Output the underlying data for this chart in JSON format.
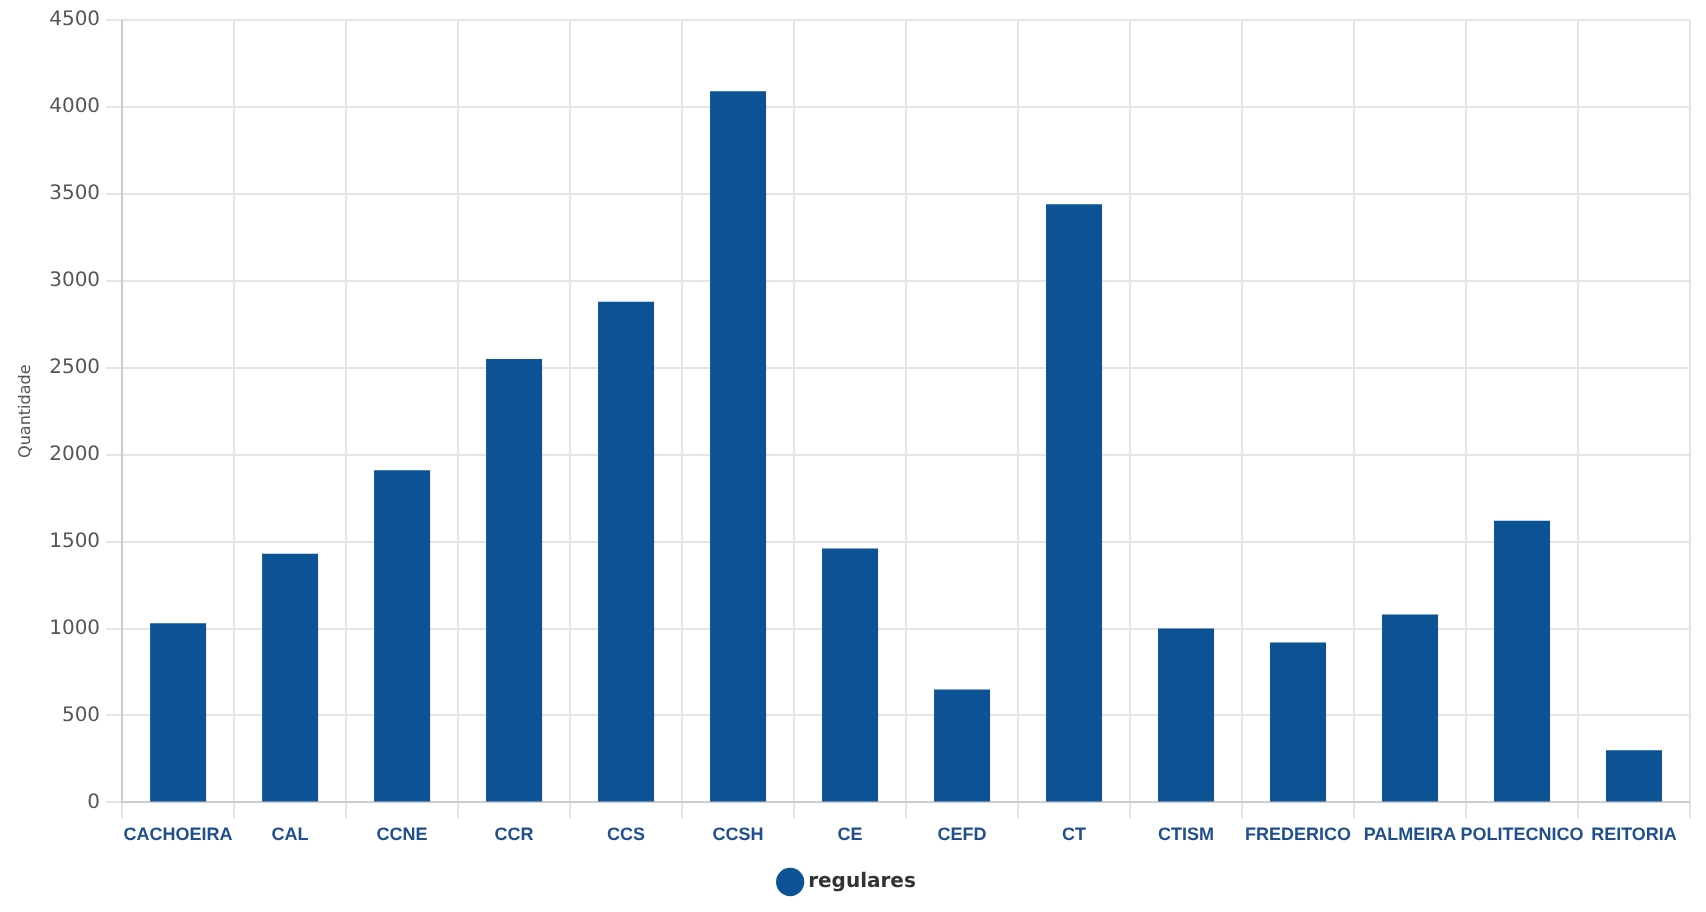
{
  "chart_data": {
    "type": "bar",
    "ylabel": "Quantidade",
    "categories": [
      "CACHOEIRA",
      "CAL",
      "CCNE",
      "CCR",
      "CCS",
      "CCSH",
      "CE",
      "CEFD",
      "CT",
      "CTISM",
      "FREDERICO",
      "PALMEIRA",
      "POLITECNICO",
      "REITORIA"
    ],
    "series": [
      {
        "name": "regulares",
        "color": "#0b5394",
        "values": [
          1030,
          1430,
          1910,
          2550,
          2880,
          4090,
          1460,
          650,
          3440,
          1000,
          920,
          1080,
          1620,
          300
        ]
      }
    ],
    "ylim": [
      0,
      4500
    ],
    "yticks": [
      0,
      500,
      1000,
      1500,
      2000,
      2500,
      3000,
      3500,
      4000,
      4500
    ],
    "grid": true,
    "legend": "bottom"
  }
}
